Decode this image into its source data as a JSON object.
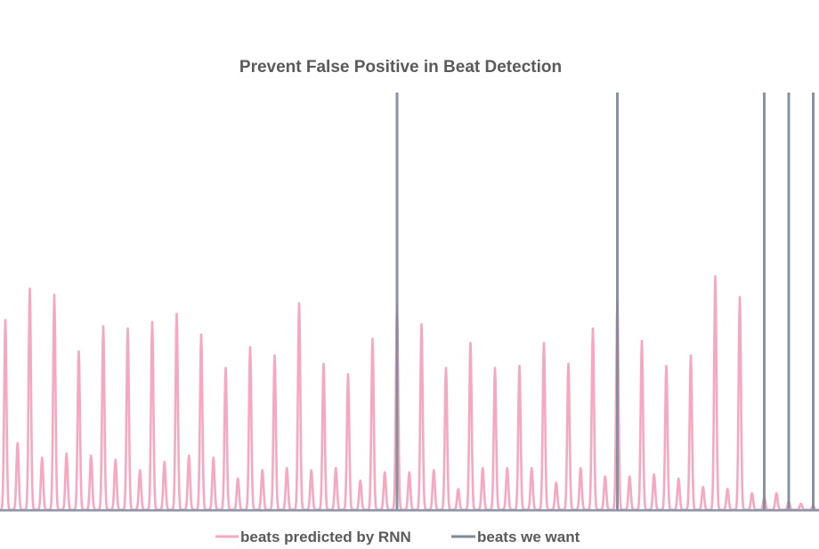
{
  "chart_data": {
    "type": "line",
    "title": "Prevent False Positive in Beat Detection",
    "xlabel": "",
    "ylabel": "",
    "grid": false,
    "legend_position": "bottom",
    "ylim": [
      0,
      1
    ],
    "series": [
      {
        "name": "beats predicted by RNN",
        "color": "#f7a8c0",
        "style": "peaks",
        "values": [
          0.455,
          0.16,
          0.53,
          0.125,
          0.515,
          0.135,
          0.38,
          0.13,
          0.44,
          0.12,
          0.435,
          0.095,
          0.45,
          0.115,
          0.47,
          0.13,
          0.42,
          0.125,
          0.34,
          0.075,
          0.39,
          0.095,
          0.37,
          0.1,
          0.495,
          0.095,
          0.35,
          0.1,
          0.325,
          0.07,
          0.41,
          0.09,
          0.49,
          0.09,
          0.445,
          0.095,
          0.34,
          0.05,
          0.4,
          0.1,
          0.34,
          0.1,
          0.345,
          0.1,
          0.4,
          0.065,
          0.35,
          0.1,
          0.435,
          0.08,
          0.5,
          0.08,
          0.405,
          0.085,
          0.345,
          0.075,
          0.37,
          0.055,
          0.56,
          0.05,
          0.51,
          0.04,
          0.03,
          0.04,
          0.02,
          0.015,
          0.01
        ]
      },
      {
        "name": "beats we want",
        "color": "#7d8a99",
        "style": "spikes",
        "beat_indices": [
          32,
          50,
          62,
          64,
          66
        ],
        "values": [
          1.0,
          1.0,
          1.0,
          1.0,
          1.0
        ]
      }
    ]
  }
}
